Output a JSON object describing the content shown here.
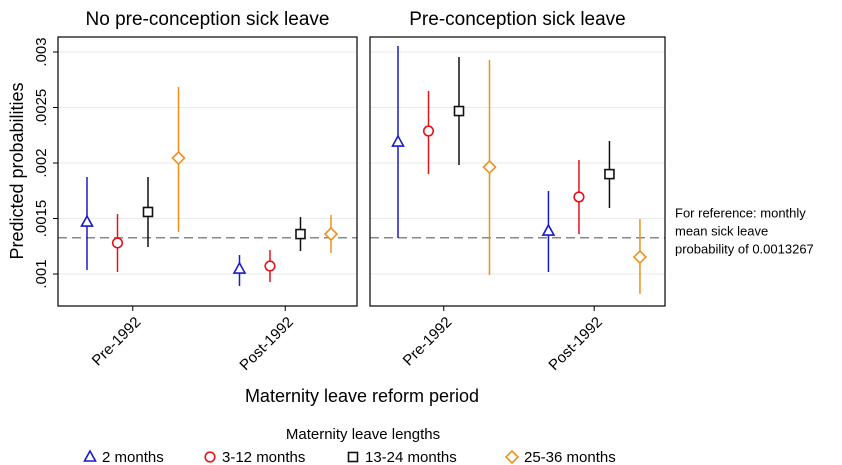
{
  "chart_data": [
    {
      "type": "errorbar",
      "title": "No pre-conception sick leave",
      "categories": [
        "Pre-1992",
        "Post-1992"
      ],
      "series": [
        {
          "values": [
            0.001468,
            0.001045
          ],
          "low": [
            0.001036,
            0.000892
          ],
          "high": [
            0.001874,
            0.001171
          ]
        },
        {
          "values": [
            0.00128,
            0.001072
          ],
          "low": [
            0.001018,
            0.000928
          ],
          "high": [
            0.00154,
            0.001216
          ]
        },
        {
          "values": [
            0.001559,
            0.00136
          ],
          "low": [
            0.001243,
            0.001207
          ],
          "high": [
            0.001874,
            0.001514
          ]
        },
        {
          "values": [
            0.002045,
            0.00136
          ],
          "low": [
            0.001378,
            0.001189
          ],
          "high": [
            0.002685,
            0.001532
          ]
        }
      ]
    },
    {
      "type": "errorbar",
      "title": "Pre-conception sick leave",
      "categories": [
        "Pre-1992",
        "Post-1992"
      ],
      "series": [
        {
          "values": [
            0.002189,
            0.001387
          ],
          "low": [
            0.001324,
            0.001018
          ],
          "high": [
            0.003054,
            0.001748
          ]
        },
        {
          "values": [
            0.002288,
            0.001694
          ],
          "low": [
            0.0019,
            0.00136
          ],
          "high": [
            0.002649,
            0.002027
          ]
        },
        {
          "values": [
            0.002468,
            0.0019
          ],
          "low": [
            0.001982,
            0.001595
          ],
          "high": [
            0.002955,
            0.002198
          ]
        },
        {
          "values": [
            0.001964,
            0.001153
          ],
          "low": [
            0.000991,
            0.00082
          ],
          "high": [
            0.002928,
            0.001495
          ]
        }
      ]
    }
  ],
  "ylabel": "Predicted probabilities",
  "xlabel": "Maternity leave reform period",
  "ylim": [
    0.000712,
    0.003135
  ],
  "yticks": [
    {
      "value": 0.001,
      "label": ".001"
    },
    {
      "value": 0.0015,
      "label": ".0015"
    },
    {
      "value": 0.002,
      "label": ".002"
    },
    {
      "value": 0.0025,
      "label": ".0025"
    },
    {
      "value": 0.003,
      "label": ".003"
    }
  ],
  "grid": true,
  "reference_line": 0.0013267,
  "annotation": [
    "For reference: monthly",
    "mean sick leave",
    "probability of 0.0013267"
  ],
  "legend": {
    "title": "Maternity leave lengths",
    "series": [
      {
        "name": "2 months",
        "color": "#1a1acc",
        "marker": "triangle"
      },
      {
        "name": "3-12 months",
        "color": "#e0141e",
        "marker": "circle"
      },
      {
        "name": "13-24 months",
        "color": "#111111",
        "marker": "square"
      },
      {
        "name": "25-36 months",
        "color": "#f0901a",
        "marker": "diamond"
      }
    ]
  }
}
